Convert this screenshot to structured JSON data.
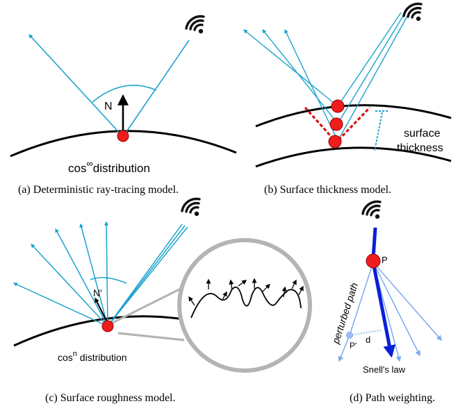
{
  "panel_a": {
    "caption": "(a) Deterministic ray-tracing model.",
    "normal_label": "N",
    "distribution_base": "cos",
    "distribution_exp": "∞",
    "distribution_word": "distribution"
  },
  "panel_b": {
    "caption": "(b) Surface thickness model.",
    "thickness_label_line1": "surface",
    "thickness_label_line2": "thickness"
  },
  "panel_c": {
    "caption": "(c) Surface roughness model.",
    "normal_label": "N'",
    "distribution_base": "cos",
    "distribution_exp": "n",
    "distribution_word": " distribution"
  },
  "panel_d": {
    "caption": "(d) Path weighting.",
    "point_label": "P",
    "perturbed_point_label": "P'",
    "distance_label": "d",
    "perturbed_path_label": "perturbed path",
    "snell_label": "Snell's law"
  },
  "colors": {
    "ray": "#1aa3cc",
    "point": "#ee1c1c",
    "path": "#0a1fd9",
    "perturbed": "#7aaaf0",
    "thickness_cone": "#dd1111",
    "magnifier": "#b4b4b4"
  },
  "icons": [
    "antenna-icon"
  ]
}
